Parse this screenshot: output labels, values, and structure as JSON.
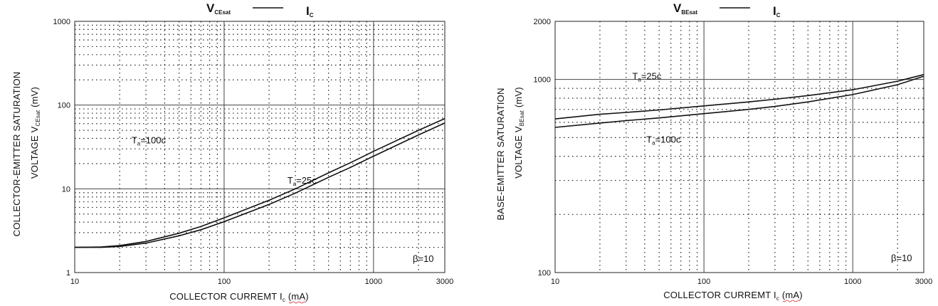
{
  "chart_data": [
    {
      "type": "line",
      "title_main": "V",
      "title_sub": "CEsat",
      "title_right_main": "I",
      "title_right_sub": "C",
      "xlabel_prefix": "COLLECTOR CURREMT I",
      "xlabel_sub": "c",
      "xlabel_suffix": " (mA)",
      "ylabel_line1": "COLLECTOR-EMITTER SATURATION",
      "ylabel_line2_prefix": "VOLTAGE",
      "ylabel_sym": "V",
      "ylabel_sym_sub": "CEsat",
      "ylabel_unit": "(mV)",
      "x_scale": "log",
      "y_scale": "log",
      "xlim": [
        10,
        3000
      ],
      "ylim": [
        1,
        1000
      ],
      "xticks": [
        10,
        100,
        1000,
        3000
      ],
      "xtick_labels": [
        "10",
        "100",
        "1000",
        "3000"
      ],
      "yticks": [
        1,
        10,
        100,
        1000
      ],
      "ytick_labels": [
        "1",
        "10",
        "100",
        "1000"
      ],
      "beta_label": "β=10",
      "annotations": [
        {
          "main": "T",
          "sub": "a",
          "rest": "=100",
          "deg": "c",
          "at_x": 24,
          "at_y": 35
        },
        {
          "main": "T",
          "sub": "a",
          "rest": "=25",
          "deg": "c",
          "at_x": 265,
          "at_y": 11.5
        }
      ],
      "series": [
        {
          "x": [
            10,
            15,
            20,
            30,
            50,
            70,
            100,
            200,
            300,
            500,
            700,
            1000,
            2000,
            3000
          ],
          "y": [
            2.0,
            2.02,
            2.1,
            2.35,
            2.95,
            3.55,
            4.5,
            7.3,
            10.0,
            15.5,
            20.5,
            28,
            50,
            69
          ]
        },
        {
          "x": [
            10,
            15,
            20,
            30,
            50,
            70,
            100,
            200,
            300,
            500,
            700,
            1000,
            2000,
            3000
          ],
          "y": [
            2.0,
            2.0,
            2.05,
            2.25,
            2.75,
            3.25,
            4.05,
            6.5,
            8.9,
            13.7,
            18.0,
            24.5,
            44,
            61
          ]
        }
      ]
    },
    {
      "type": "line",
      "title_main": "V",
      "title_sub": "BEsat",
      "title_right_main": "I",
      "title_right_sub": "C",
      "xlabel_prefix": "COLLECTOR CURREMT I",
      "xlabel_sub": "c",
      "xlabel_suffix": " (mA)",
      "ylabel_line1": "BASE-EMITTER SATURATION",
      "ylabel_line2_prefix": "VOLTAGE",
      "ylabel_sym": "V",
      "ylabel_sym_sub": "BEsat",
      "ylabel_unit": "(mV)",
      "x_scale": "log",
      "y_scale": "log",
      "xlim": [
        10,
        3000
      ],
      "ylim": [
        100,
        2000
      ],
      "xticks": [
        10,
        100,
        1000,
        3000
      ],
      "xtick_labels": [
        "10",
        "100",
        "1000",
        "3000"
      ],
      "yticks": [
        100,
        1000,
        2000
      ],
      "ytick_labels": [
        "100",
        "1000",
        "2000"
      ],
      "beta_label": "β=10",
      "annotations": [
        {
          "main": "T",
          "sub": "a",
          "rest": "=25",
          "deg": "c",
          "at_x": 33,
          "at_y": 1000
        },
        {
          "main": "T",
          "sub": "a",
          "rest": "=100",
          "deg": "c",
          "at_x": 41,
          "at_y": 470
        }
      ],
      "series": [
        {
          "x": [
            10,
            20,
            30,
            50,
            100,
            200,
            300,
            500,
            1000,
            2000,
            3000
          ],
          "y": [
            625,
            660,
            675,
            695,
            730,
            765,
            790,
            825,
            885,
            980,
            1060
          ]
        },
        {
          "x": [
            10,
            20,
            30,
            50,
            100,
            200,
            300,
            500,
            1000,
            2000,
            3000
          ],
          "y": [
            565,
            595,
            612,
            632,
            665,
            700,
            725,
            765,
            835,
            940,
            1040
          ]
        }
      ]
    }
  ]
}
